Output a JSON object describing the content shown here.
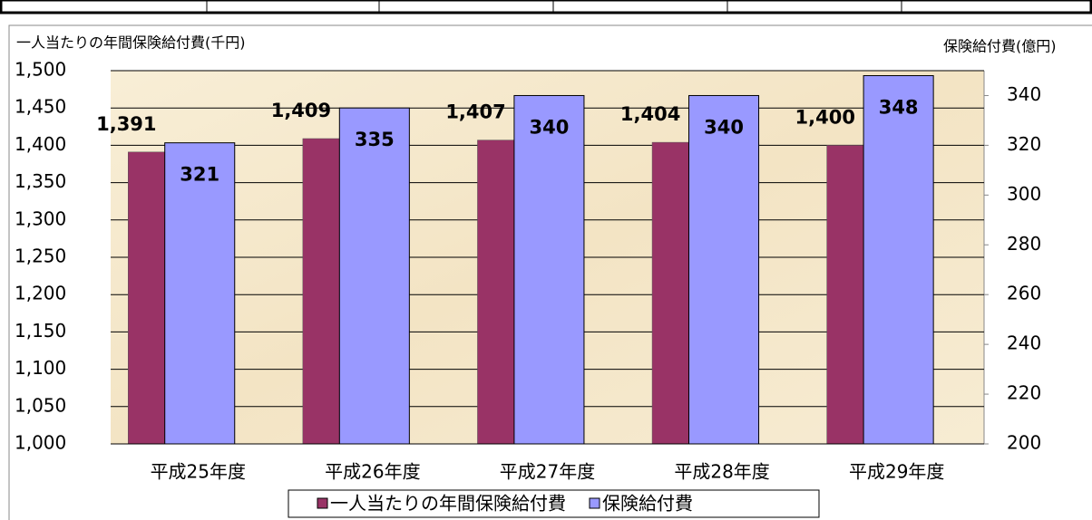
{
  "chart_data": {
    "type": "bar",
    "y_label": "一人当たりの年間保険給付費(千円)",
    "y2_label": "保険給付費(億円)",
    "categories": [
      "平成25年度",
      "平成26年度",
      "平成27年度",
      "平成28年度",
      "平成29年度"
    ],
    "series": [
      {
        "name": "一人当たりの年間保険給付費",
        "color": "#993366",
        "values": [
          1391,
          1409,
          1407,
          1404,
          1400
        ],
        "value_labels": [
          "1,391",
          "1,409",
          "1,407",
          "1,404",
          "1,400"
        ]
      },
      {
        "name": "保険給付費",
        "color": "#9999ff",
        "axis": "y2",
        "values": [
          321,
          335,
          340,
          340,
          348
        ]
      }
    ],
    "ylim": [
      1000,
      1500
    ],
    "yticks": [
      {
        "value": 1000,
        "label": "1,000"
      },
      {
        "value": 1050,
        "label": "1,050"
      },
      {
        "value": 1100,
        "label": "1,100"
      },
      {
        "value": 1150,
        "label": "1,150"
      },
      {
        "value": 1200,
        "label": "1,200"
      },
      {
        "value": 1250,
        "label": "1,250"
      },
      {
        "value": 1300,
        "label": "1,300"
      },
      {
        "value": 1350,
        "label": "1,350"
      },
      {
        "value": 1400,
        "label": "1,400"
      },
      {
        "value": 1450,
        "label": "1,450"
      },
      {
        "value": 1500,
        "label": "1,500"
      }
    ],
    "y2lim": [
      200,
      350
    ],
    "y2ticks": [
      200,
      220,
      240,
      260,
      280,
      300,
      320,
      340
    ],
    "grid": true,
    "legend": "bottom"
  }
}
